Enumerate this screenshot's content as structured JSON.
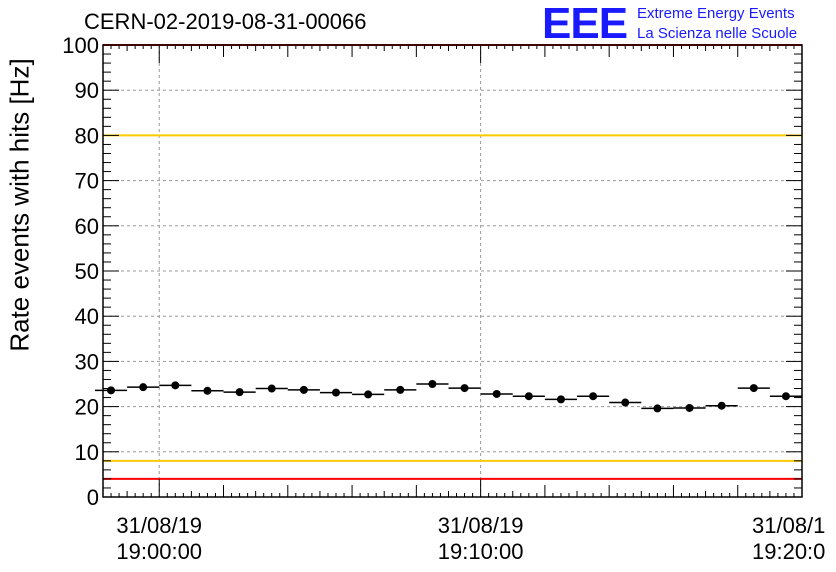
{
  "header": {
    "run_title": "CERN-02-2019-08-31-00066",
    "logo_mark": "EEE",
    "logo_line1": "Extreme Energy Events",
    "logo_line2": "La Scienza nelle Scuole"
  },
  "chart_data": {
    "type": "scatter",
    "title": "CERN-02-2019-08-31-00066",
    "xlabel": "",
    "ylabel": "Rate events with hits [Hz]",
    "ylim": [
      0,
      100
    ],
    "yticks": [
      0,
      10,
      20,
      30,
      40,
      50,
      60,
      70,
      80,
      90,
      100
    ],
    "x_ticks": [
      {
        "date": "31/08/19",
        "time": "19:00:00",
        "minute": 0
      },
      {
        "date": "31/08/19",
        "time": "19:10:00",
        "minute": 10
      },
      {
        "date": "31/08/1",
        "time": "19:20:0",
        "minute": 20
      }
    ],
    "xlim_minutes": [
      -1.75,
      20.0
    ],
    "bin_width_minutes": 1.0,
    "grid": true,
    "series": [
      {
        "points": [
          {
            "minute": -1.5,
            "rate": 23.6
          },
          {
            "minute": -0.5,
            "rate": 24.3
          },
          {
            "minute": 0.5,
            "rate": 24.7
          },
          {
            "minute": 1.5,
            "rate": 23.5
          },
          {
            "minute": 2.5,
            "rate": 23.2
          },
          {
            "minute": 3.5,
            "rate": 24.0
          },
          {
            "minute": 4.5,
            "rate": 23.7
          },
          {
            "minute": 5.5,
            "rate": 23.1
          },
          {
            "minute": 6.5,
            "rate": 22.7
          },
          {
            "minute": 7.5,
            "rate": 23.7
          },
          {
            "minute": 8.5,
            "rate": 25.0
          },
          {
            "minute": 9.5,
            "rate": 24.1
          },
          {
            "minute": 10.5,
            "rate": 22.8
          },
          {
            "minute": 11.5,
            "rate": 22.3
          },
          {
            "minute": 12.5,
            "rate": 21.6
          },
          {
            "minute": 13.5,
            "rate": 22.3
          },
          {
            "minute": 14.5,
            "rate": 20.9
          },
          {
            "minute": 15.5,
            "rate": 19.6
          },
          {
            "minute": 16.5,
            "rate": 19.7
          },
          {
            "minute": 17.5,
            "rate": 20.2
          },
          {
            "minute": 18.5,
            "rate": 24.1
          },
          {
            "minute": 19.5,
            "rate": 22.3
          }
        ]
      }
    ],
    "reference_lines": [
      {
        "value": 100,
        "color": "#ff0000"
      },
      {
        "value": 80,
        "color": "#ffcc00"
      },
      {
        "value": 8,
        "color": "#ffcc00"
      },
      {
        "value": 4,
        "color": "#ff0000"
      }
    ],
    "colors": {
      "marker": "#000000",
      "grid": "#999999",
      "logo": "#1a1aff"
    }
  }
}
